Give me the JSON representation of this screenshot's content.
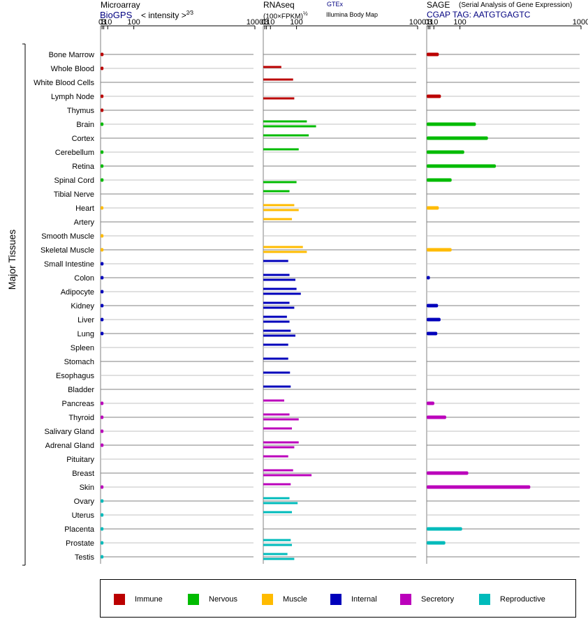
{
  "headers": {
    "microarray": {
      "title": "Microarray",
      "source": "BioGPS",
      "units": "< intensity >",
      "exponent": "2⁄3"
    },
    "rnaseq": {
      "title": "RNAseq",
      "units": "(100×FPKM)",
      "exponent": "½",
      "source1": "GTEx",
      "source2": "Illumina Body Map"
    },
    "sage": {
      "title": "SAGE",
      "subtitle": "(Serial Analysis of Gene Expression)",
      "tag": "CGAP TAG: AATGTGAGTC"
    }
  },
  "group_label": "Major Tissues",
  "legend": [
    {
      "name": "Immune",
      "color": "#bb0000"
    },
    {
      "name": "Nervous",
      "color": "#00bb00"
    },
    {
      "name": "Muscle",
      "color": "#ffbb00"
    },
    {
      "name": "Internal",
      "color": "#0000bb"
    },
    {
      "name": "Secretory",
      "color": "#bb00bb"
    },
    {
      "name": "Reproductive",
      "color": "#00bbbb"
    }
  ],
  "chart_data": {
    "type": "bar",
    "orientation": "horizontal",
    "x_scale": "power",
    "x_ticks": [
      "0",
      "1",
      "3",
      "10",
      "100",
      "1000"
    ],
    "x_lim": [
      0,
      1000
    ],
    "categories": [
      "Bone Marrow",
      "Whole Blood",
      "White Blood Cells",
      "Lymph Node",
      "Thymus",
      "Brain",
      "Cortex",
      "Cerebellum",
      "Retina",
      "Spinal Cord",
      "Tibial Nerve",
      "Heart",
      "Artery",
      "Smooth Muscle",
      "Skeletal Muscle",
      "Small Intestine",
      "Colon",
      "Adipocyte",
      "Kidney",
      "Liver",
      "Lung",
      "Spleen",
      "Stomach",
      "Esophagus",
      "Bladder",
      "Pancreas",
      "Thyroid",
      "Salivary Gland",
      "Adrenal Gland",
      "Pituitary",
      "Breast",
      "Skin",
      "Ovary",
      "Uterus",
      "Placenta",
      "Prostate",
      "Testis"
    ],
    "category_system": [
      "Immune",
      "Immune",
      "Immune",
      "Immune",
      "Immune",
      "Nervous",
      "Nervous",
      "Nervous",
      "Nervous",
      "Nervous",
      "Nervous",
      "Muscle",
      "Muscle",
      "Muscle",
      "Muscle",
      "Internal",
      "Internal",
      "Internal",
      "Internal",
      "Internal",
      "Internal",
      "Internal",
      "Internal",
      "Internal",
      "Internal",
      "Secretory",
      "Secretory",
      "Secretory",
      "Secretory",
      "Secretory",
      "Secretory",
      "Secretory",
      "Reproductive",
      "Reproductive",
      "Reproductive",
      "Reproductive",
      "Reproductive"
    ],
    "series": [
      {
        "name": "Microarray",
        "values": [
          2.7,
          2.6,
          null,
          2.6,
          2.6,
          2.6,
          null,
          2.6,
          2.6,
          2.7,
          null,
          2.5,
          null,
          2.6,
          2.6,
          2.7,
          2.7,
          2.7,
          2.7,
          2.7,
          2.7,
          null,
          null,
          null,
          null,
          2.6,
          2.6,
          2.6,
          2.7,
          null,
          null,
          2.6,
          2.7,
          2.6,
          2.6,
          2.6,
          2.6
        ]
      },
      {
        "name": "GTEx",
        "values": [
          null,
          40,
          null,
          null,
          null,
          null,
          null,
          null,
          null,
          null,
          null,
          null,
          null,
          null,
          null,
          null,
          null,
          null,
          null,
          null,
          null,
          null,
          null,
          null,
          null,
          null,
          null,
          null,
          null,
          null,
          null,
          null,
          null,
          null,
          null,
          null,
          null
        ]
      },
      {
        "name": "RNAseq A",
        "values": [
          null,
          null,
          85,
          null,
          null,
          150,
          160,
          110,
          null,
          null,
          70,
          90,
          80,
          null,
          130,
          65,
          70,
          100,
          70,
          60,
          75,
          65,
          65,
          72,
          75,
          50,
          70,
          80,
          110,
          65,
          85,
          75,
          70,
          80,
          null,
          75,
          62
        ]
      },
      {
        "name": "RNAseq B",
        "values": [
          null,
          null,
          null,
          90,
          null,
          200,
          null,
          null,
          null,
          100,
          null,
          110,
          null,
          null,
          150,
          null,
          95,
          120,
          90,
          70,
          95,
          null,
          null,
          null,
          null,
          null,
          110,
          null,
          90,
          null,
          175,
          null,
          105,
          null,
          null,
          80,
          90
        ]
      },
      {
        "name": "SAGE",
        "values": [
          22,
          null,
          null,
          28,
          null,
          180,
          250,
          120,
          300,
          65,
          null,
          22,
          null,
          null,
          65,
          null,
          3,
          null,
          20,
          27,
          18,
          null,
          null,
          null,
          null,
          11,
          45,
          null,
          null,
          null,
          140,
          550,
          null,
          null,
          110,
          42,
          null
        ]
      }
    ]
  }
}
